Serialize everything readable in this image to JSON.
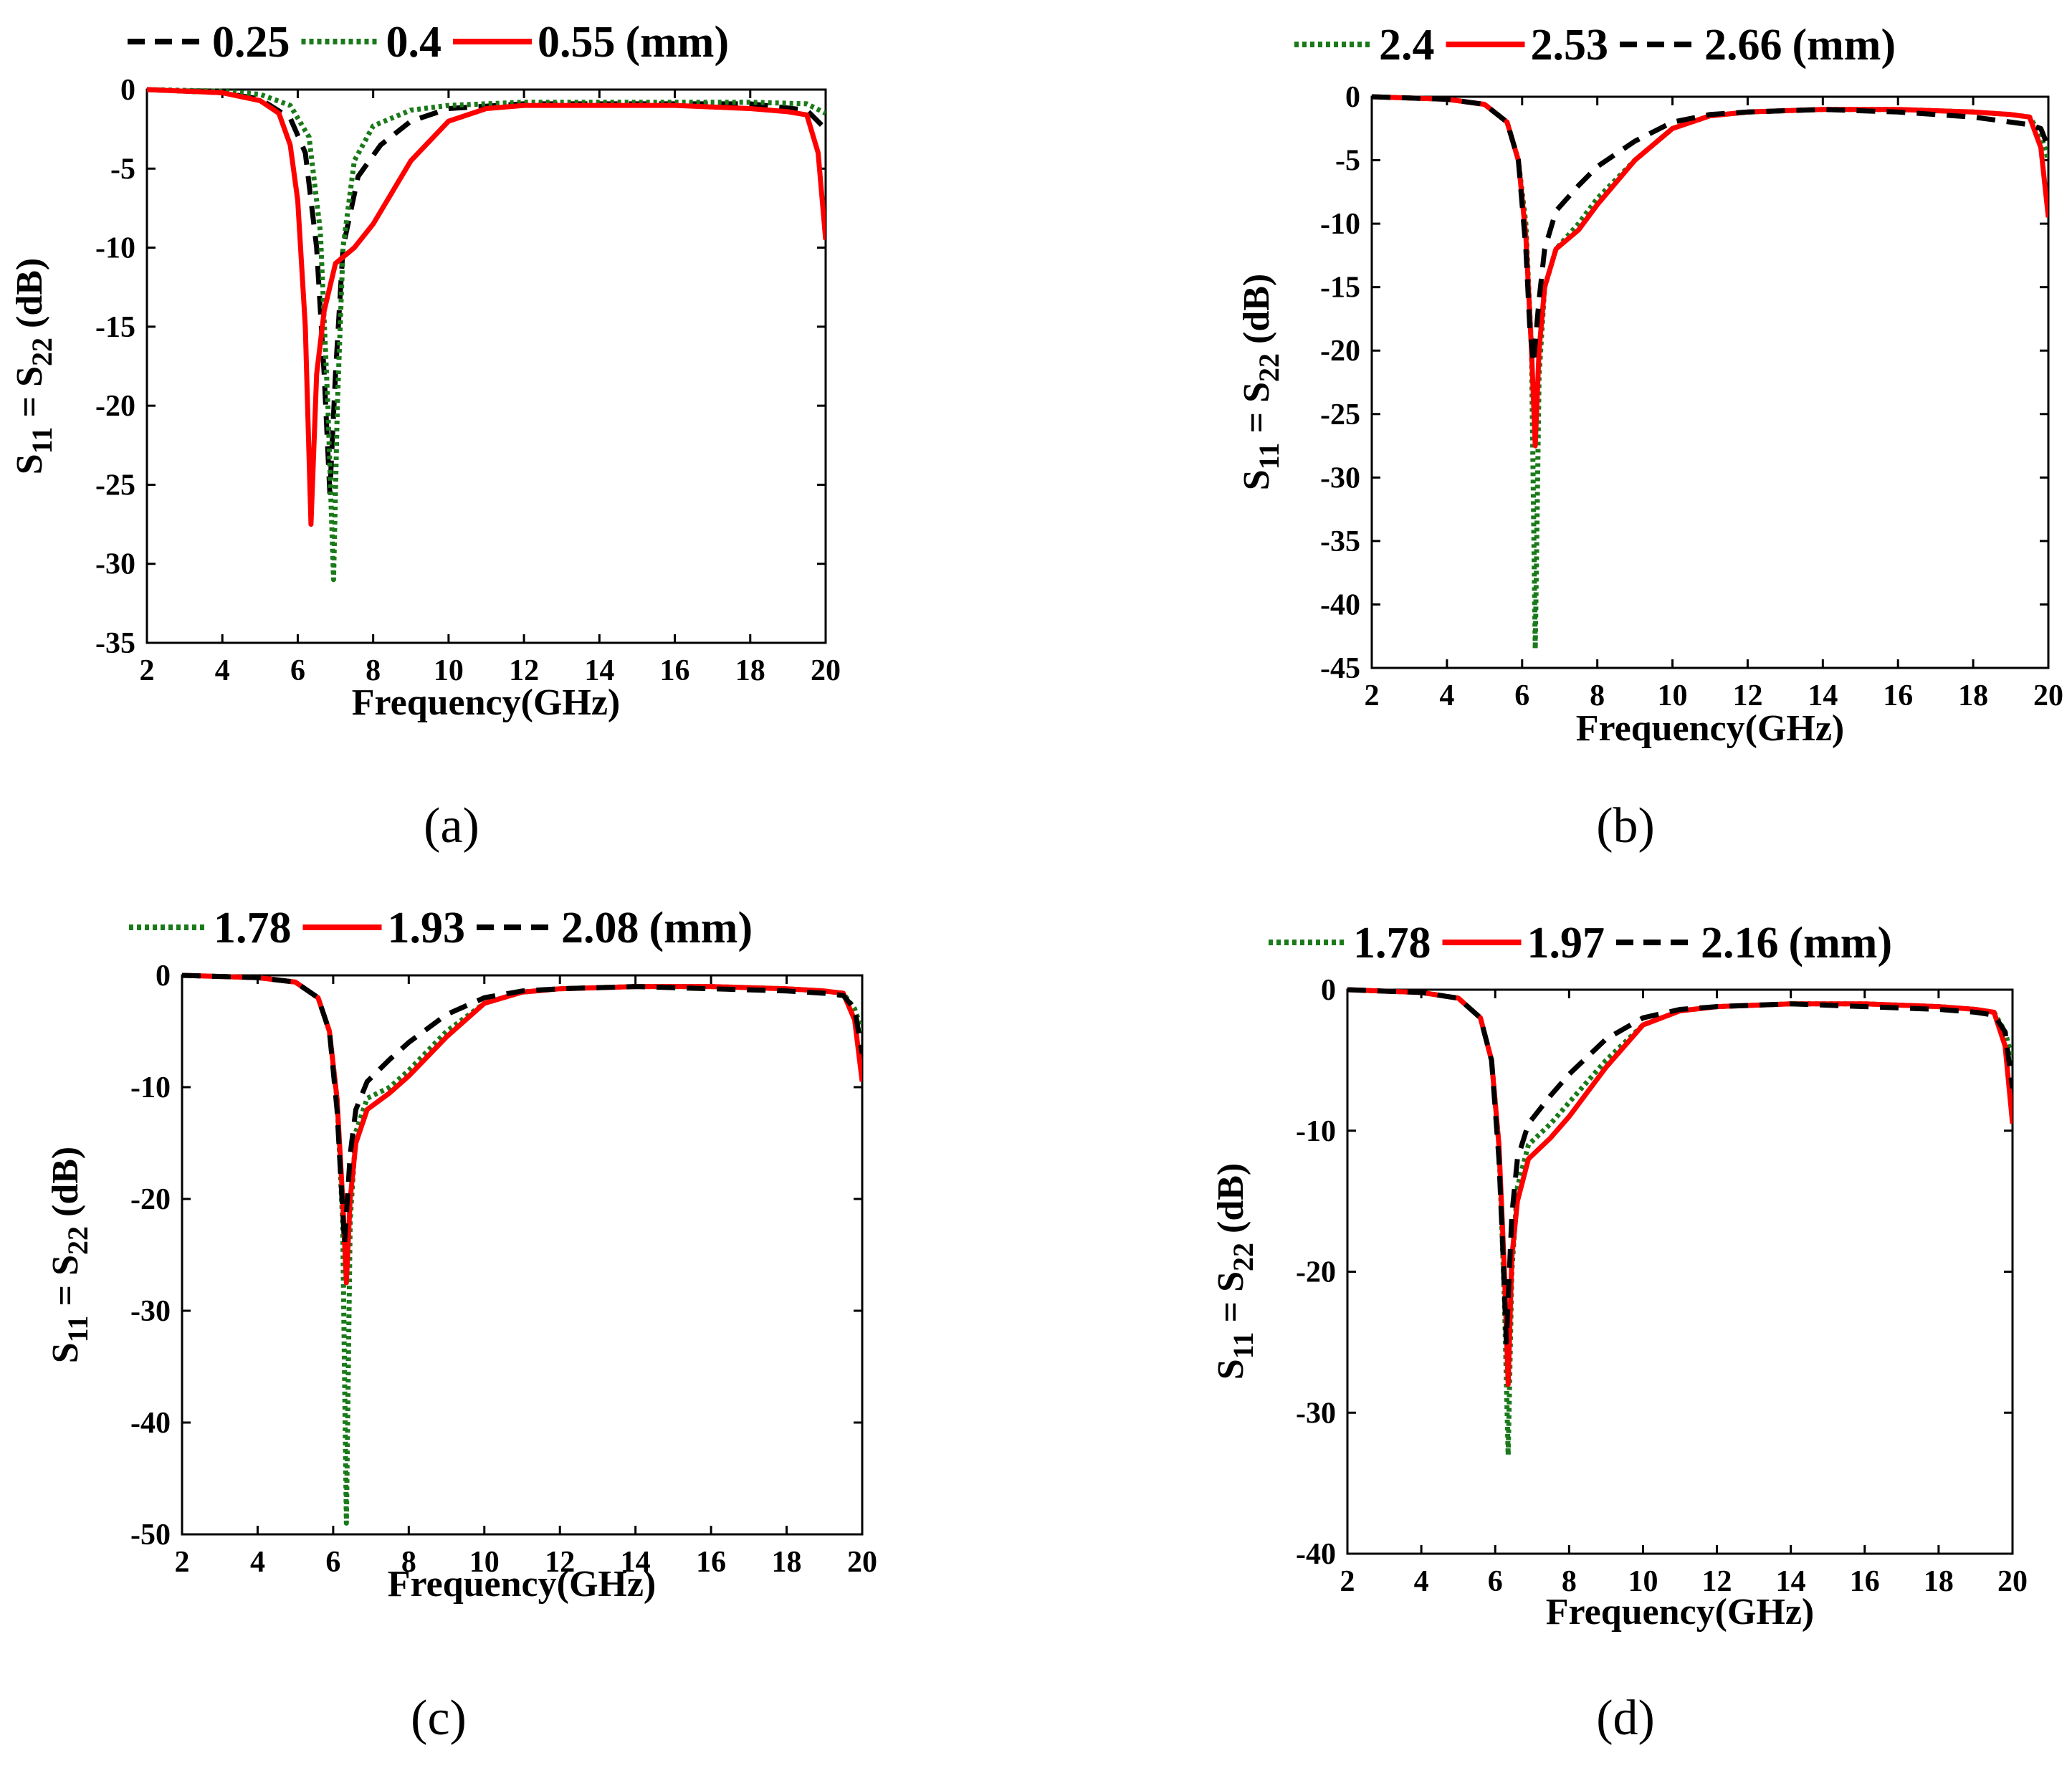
{
  "colors": {
    "black": "#000000",
    "green": "#1a7a1a",
    "red": "#ff0000"
  },
  "chart_data": [
    {
      "type": "line",
      "caption": "(a)",
      "xlabel": "Frequency(GHz)",
      "ylabel_main": "S",
      "ylabel_sub1": "11",
      "ylabel_mid": " = S",
      "ylabel_sub2": "22",
      "ylabel_tail": " (dB)",
      "xlim": [
        2,
        20
      ],
      "ylim": [
        -35,
        0
      ],
      "xticks": [
        2,
        4,
        6,
        8,
        10,
        12,
        14,
        16,
        18,
        20
      ],
      "yticks": [
        0,
        -5,
        -10,
        -15,
        -20,
        -25,
        -30,
        -35
      ],
      "legend_unit": "(mm)",
      "series": [
        {
          "name": "0.25",
          "style": "dashed",
          "color": "#000000",
          "x": [
            2,
            4,
            5,
            5.8,
            6.2,
            6.5,
            6.7,
            6.85,
            7.0,
            7.2,
            7.6,
            8.2,
            9,
            10,
            12,
            14,
            16,
            18,
            19.5,
            20
          ],
          "y": [
            0,
            -0.2,
            -0.6,
            -1.8,
            -4,
            -10,
            -18,
            -25.5,
            -18,
            -10,
            -5.5,
            -3.5,
            -2,
            -1.2,
            -0.9,
            -0.9,
            -0.9,
            -0.9,
            -1.3,
            -2.5
          ]
        },
        {
          "name": "0.4",
          "style": "dotted",
          "color": "#1a7a1a",
          "x": [
            2,
            4,
            5,
            5.8,
            6.3,
            6.6,
            6.8,
            6.95,
            7.05,
            7.2,
            7.5,
            8,
            9,
            10,
            12,
            14,
            16,
            18,
            19.5,
            20
          ],
          "y": [
            0,
            -0.1,
            -0.3,
            -1,
            -3,
            -9,
            -20,
            -31,
            -20,
            -10,
            -4.5,
            -2.3,
            -1.3,
            -1.0,
            -0.8,
            -0.8,
            -0.8,
            -0.8,
            -0.9,
            -1.5
          ]
        },
        {
          "name": "0.55",
          "style": "solid",
          "color": "#ff0000",
          "x": [
            2,
            4,
            5,
            5.5,
            5.8,
            6.0,
            6.2,
            6.35,
            6.5,
            6.7,
            7.0,
            7.5,
            8,
            8.5,
            9,
            10,
            11,
            12,
            14,
            16,
            18,
            19,
            19.5,
            19.8,
            20
          ],
          "y": [
            0,
            -0.2,
            -0.7,
            -1.5,
            -3.5,
            -7,
            -15,
            -27.5,
            -18,
            -14,
            -11,
            -10,
            -8.5,
            -6.5,
            -4.5,
            -2,
            -1.2,
            -1.0,
            -1.0,
            -1.0,
            -1.2,
            -1.4,
            -1.6,
            -4,
            -9.5
          ]
        }
      ]
    },
    {
      "type": "line",
      "caption": "(b)",
      "xlabel": "Frequency(GHz)",
      "ylabel_main": "S",
      "ylabel_sub1": "11",
      "ylabel_mid": " = S",
      "ylabel_sub2": "22",
      "ylabel_tail": " (dB)",
      "xlim": [
        2,
        20
      ],
      "ylim": [
        -45,
        0
      ],
      "xticks": [
        2,
        4,
        6,
        8,
        10,
        12,
        14,
        16,
        18,
        20
      ],
      "yticks": [
        0,
        -5,
        -10,
        -15,
        -20,
        -25,
        -30,
        -35,
        -40,
        -45
      ],
      "legend_unit": "(mm)",
      "series": [
        {
          "name": "2.4",
          "style": "dotted",
          "color": "#1a7a1a",
          "x": [
            2,
            4,
            5,
            5.6,
            5.9,
            6.1,
            6.25,
            6.35,
            6.45,
            6.6,
            6.9,
            7.5,
            8,
            9,
            10,
            11,
            12,
            14,
            16,
            18,
            19,
            19.5,
            19.8,
            20
          ],
          "y": [
            0,
            -0.2,
            -0.6,
            -2,
            -5,
            -10,
            -20,
            -43.5,
            -22,
            -15,
            -12,
            -10,
            -8,
            -5,
            -2.5,
            -1.5,
            -1.2,
            -1.0,
            -1.0,
            -1.2,
            -1.4,
            -1.6,
            -3,
            -5
          ]
        },
        {
          "name": "2.53",
          "style": "solid",
          "color": "#ff0000",
          "x": [
            2,
            4,
            5,
            5.6,
            5.9,
            6.1,
            6.25,
            6.35,
            6.45,
            6.6,
            6.9,
            7.5,
            8,
            9,
            10,
            11,
            12,
            14,
            16,
            18,
            19,
            19.5,
            19.8,
            20
          ],
          "y": [
            0,
            -0.2,
            -0.6,
            -2,
            -5,
            -11,
            -20,
            -27.5,
            -20,
            -15,
            -12,
            -10.5,
            -8.5,
            -5,
            -2.5,
            -1.5,
            -1.2,
            -1.0,
            -1.0,
            -1.2,
            -1.4,
            -1.6,
            -4,
            -9.5
          ]
        },
        {
          "name": "2.66",
          "style": "dashed",
          "color": "#000000",
          "x": [
            2,
            4,
            5,
            5.6,
            5.9,
            6.1,
            6.2,
            6.3,
            6.45,
            6.6,
            6.9,
            7.5,
            8,
            9,
            10,
            11,
            12,
            14,
            16,
            18,
            19,
            19.5,
            19.8,
            20
          ],
          "y": [
            0,
            -0.2,
            -0.6,
            -2,
            -5,
            -12,
            -18,
            -21,
            -16,
            -12,
            -9,
            -7,
            -5.5,
            -3.5,
            -2,
            -1.4,
            -1.2,
            -1.0,
            -1.2,
            -1.6,
            -2.0,
            -2.2,
            -2.5,
            -4
          ]
        }
      ]
    },
    {
      "type": "line",
      "caption": "(c)",
      "xlabel": "Frequency(GHz)",
      "ylabel_main": "S",
      "ylabel_sub1": "11",
      "ylabel_mid": " = S",
      "ylabel_sub2": "22",
      "ylabel_tail": " (dB)",
      "xlim": [
        2,
        20
      ],
      "ylim": [
        -50,
        0
      ],
      "xticks": [
        2,
        4,
        6,
        8,
        10,
        12,
        14,
        16,
        18,
        20
      ],
      "yticks": [
        0,
        -10,
        -20,
        -30,
        -40,
        -50
      ],
      "legend_unit": "(mm)",
      "series": [
        {
          "name": "1.78",
          "style": "dotted",
          "color": "#1a7a1a",
          "x": [
            2,
            4,
            5,
            5.6,
            5.9,
            6.1,
            6.25,
            6.35,
            6.45,
            6.6,
            6.9,
            7.5,
            8,
            9,
            10,
            11,
            12,
            14,
            16,
            18,
            19,
            19.5,
            19.8,
            20
          ],
          "y": [
            0,
            -0.2,
            -0.6,
            -2,
            -5,
            -11,
            -22,
            -49,
            -22,
            -14,
            -11,
            -10,
            -8.5,
            -5,
            -2.5,
            -1.5,
            -1.2,
            -1.0,
            -1.0,
            -1.2,
            -1.4,
            -1.6,
            -3,
            -5
          ]
        },
        {
          "name": "1.93",
          "style": "solid",
          "color": "#ff0000",
          "x": [
            2,
            4,
            5,
            5.6,
            5.9,
            6.1,
            6.25,
            6.35,
            6.45,
            6.6,
            6.9,
            7.5,
            8,
            9,
            10,
            11,
            12,
            14,
            16,
            18,
            19,
            19.5,
            19.8,
            20
          ],
          "y": [
            0,
            -0.2,
            -0.6,
            -2,
            -5,
            -11,
            -20,
            -27.5,
            -20,
            -15,
            -12,
            -10.5,
            -9,
            -5.5,
            -2.5,
            -1.5,
            -1.2,
            -1.0,
            -1.0,
            -1.2,
            -1.4,
            -1.6,
            -4,
            -9.5
          ]
        },
        {
          "name": "2.08",
          "style": "dashed",
          "color": "#000000",
          "x": [
            2,
            4,
            5,
            5.6,
            5.9,
            6.1,
            6.2,
            6.3,
            6.45,
            6.6,
            6.9,
            7.5,
            8,
            9,
            10,
            11,
            12,
            14,
            16,
            18,
            19,
            19.5,
            19.8,
            20
          ],
          "y": [
            0,
            -0.2,
            -0.6,
            -2,
            -5,
            -12,
            -18,
            -24,
            -16,
            -12,
            -9.5,
            -7.5,
            -6,
            -3.5,
            -2,
            -1.4,
            -1.2,
            -1.0,
            -1.2,
            -1.4,
            -1.6,
            -1.8,
            -3,
            -7
          ]
        }
      ]
    },
    {
      "type": "line",
      "caption": "(d)",
      "xlabel": "Frequency(GHz)",
      "ylabel_main": "S",
      "ylabel_sub1": "11",
      "ylabel_mid": " = S",
      "ylabel_sub2": "22",
      "ylabel_tail": " (dB)",
      "xlim": [
        2,
        20
      ],
      "ylim": [
        -40,
        0
      ],
      "xticks": [
        2,
        4,
        6,
        8,
        10,
        12,
        14,
        16,
        18,
        20
      ],
      "yticks": [
        0,
        -10,
        -20,
        -30,
        -40
      ],
      "legend_unit": "(mm)",
      "series": [
        {
          "name": "1.78",
          "style": "dotted",
          "color": "#1a7a1a",
          "x": [
            2,
            4,
            5,
            5.6,
            5.9,
            6.1,
            6.25,
            6.35,
            6.45,
            6.6,
            6.9,
            7.5,
            8,
            9,
            10,
            11,
            12,
            14,
            16,
            18,
            19,
            19.5,
            19.8,
            20
          ],
          "y": [
            0,
            -0.2,
            -0.6,
            -2,
            -5,
            -11,
            -22,
            -33,
            -20,
            -14,
            -11,
            -9.5,
            -8,
            -5,
            -2.5,
            -1.5,
            -1.2,
            -1.0,
            -1.0,
            -1.2,
            -1.4,
            -1.6,
            -3,
            -5
          ]
        },
        {
          "name": "1.97",
          "style": "solid",
          "color": "#ff0000",
          "x": [
            2,
            4,
            5,
            5.6,
            5.9,
            6.1,
            6.25,
            6.35,
            6.45,
            6.6,
            6.9,
            7.5,
            8,
            9,
            10,
            11,
            12,
            14,
            16,
            18,
            19,
            19.5,
            19.8,
            20
          ],
          "y": [
            0,
            -0.2,
            -0.6,
            -2,
            -5,
            -11,
            -20,
            -28,
            -19,
            -15,
            -12,
            -10.5,
            -9,
            -5.5,
            -2.5,
            -1.5,
            -1.2,
            -1.0,
            -1.0,
            -1.2,
            -1.4,
            -1.6,
            -4,
            -9.5
          ]
        },
        {
          "name": "2.16",
          "style": "dashed",
          "color": "#000000",
          "x": [
            2,
            4,
            5,
            5.6,
            5.9,
            6.1,
            6.2,
            6.3,
            6.45,
            6.6,
            6.9,
            7.5,
            8,
            9,
            10,
            11,
            12,
            14,
            16,
            18,
            19,
            19.5,
            19.8,
            20
          ],
          "y": [
            0,
            -0.2,
            -0.6,
            -2,
            -5,
            -12,
            -18,
            -25,
            -16,
            -12,
            -9.5,
            -7.5,
            -6,
            -3.5,
            -2,
            -1.4,
            -1.2,
            -1.0,
            -1.2,
            -1.4,
            -1.6,
            -1.8,
            -3,
            -7
          ]
        }
      ]
    }
  ]
}
